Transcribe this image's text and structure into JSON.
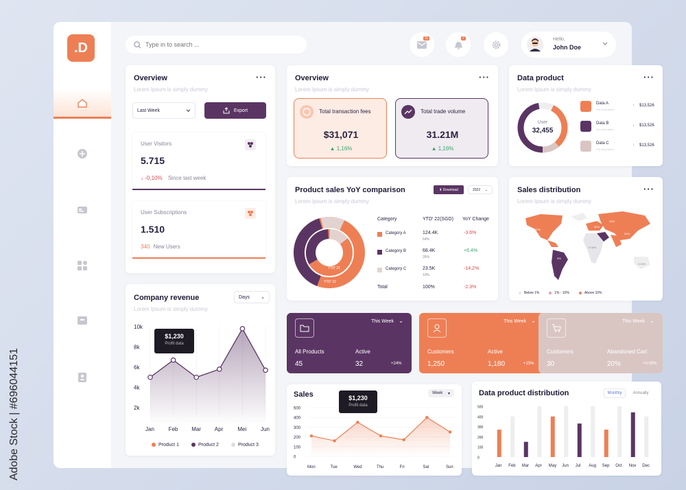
{
  "logo": ".D",
  "search": {
    "placeholder": "Type in to search ..."
  },
  "header": {
    "mail_badge": "11",
    "bell_badge": "7",
    "greeting": "Hello,",
    "user_name": "John Doe"
  },
  "overview_left": {
    "title": "Overview",
    "subtitle": "Lorem Ipsum is simply dummy",
    "period": "Last Week",
    "export_label": "Export",
    "visitors": {
      "label": "User Visitors",
      "value": "5.715",
      "delta": "-0,10%",
      "delta_note": "Since last week"
    },
    "subscriptions": {
      "label": "User Subscriptions",
      "value": "1.510",
      "count": "340",
      "count_note": "New Users"
    }
  },
  "overview_mid": {
    "title": "Overview",
    "subtitle": "Lorem Ipsum is simply dummy",
    "fees": {
      "label": "Total transaction fees",
      "value": "$31,071",
      "delta": "1,16%"
    },
    "volume": {
      "label": "Total trade volume",
      "value": "31.21M",
      "delta": "1,16%"
    }
  },
  "data_product": {
    "title": "Data product",
    "subtitle": "Lorem Ipsum is simply dummy",
    "center_label": "User",
    "center_value": "32,455",
    "items": [
      {
        "name": "Data A",
        "desc": "Put description",
        "value": "$13,526",
        "dir": "up"
      },
      {
        "name": "Data B",
        "desc": "Put description",
        "value": "$13,526",
        "dir": "down"
      },
      {
        "name": "Data C",
        "desc": "Put description",
        "value": "$13,526",
        "dir": "up"
      }
    ]
  },
  "sales_yoy": {
    "title": "Product sales YoY comparison",
    "subtitle": "Lorem Ipsum is simply dummy",
    "download_label": "Download",
    "year": "2022",
    "headers": [
      "Category",
      "YTD' 22(SGD)",
      "YoY Change"
    ],
    "rows": [
      {
        "name": "Category A",
        "value": "124.4K",
        "share": "64%",
        "change": "-3.6%",
        "color": "#ee7f55"
      },
      {
        "name": "Category B",
        "value": "68.4K",
        "share": "26%",
        "change": "+6.4%",
        "color": "#5a3563"
      },
      {
        "name": "Category C",
        "value": "23.5K",
        "share": "10%",
        "change": "-14.2%",
        "color": "#e3d3d0"
      }
    ],
    "total": {
      "name": "Total",
      "share": "100%",
      "change": "-2.3%"
    },
    "inner_label": "YTD' 21",
    "outer_label": "YTD' 22"
  },
  "sales_distribution": {
    "title": "Sales distribution",
    "subtitle": "Lorem Ipsum is simply dummy",
    "map_labels": [
      "20%",
      "29%",
      "32%",
      "31%",
      "9%",
      "0.06%",
      "0.05%"
    ],
    "legend": [
      "Below 1%",
      "1% - 10%",
      "Above 10%"
    ]
  },
  "company_revenue": {
    "title": "Company revenue",
    "subtitle": "Lorem Ipsum is simply dummy",
    "period": "Days",
    "tooltip_value": "$1,230",
    "tooltip_label": "Profit data",
    "legend": [
      "Product 1",
      "Product 2",
      "Product 3"
    ]
  },
  "stat_cards": [
    {
      "period": "This Week",
      "l1": "All Products",
      "v1": "45",
      "l2": "Active",
      "v2": "32",
      "pct": "+24%",
      "bg": "#5a3563"
    },
    {
      "period": "This Week",
      "l1": "Customers",
      "v1": "1,250",
      "l2": "Active",
      "v2": "1,180",
      "pct": "+15%",
      "bg": "#ee7f55"
    },
    {
      "period": "This Week",
      "l1": "Customers",
      "v1": "30",
      "l2": "Abandoned Cart",
      "v2": "20%",
      "pct": "+0.00%",
      "bg": "#d9c6c3"
    }
  ],
  "sales": {
    "title": "Sales",
    "period": "Week",
    "tooltip_value": "$1,230",
    "tooltip_label": "Profit data"
  },
  "distribution": {
    "title": "Data product distribution",
    "tab_monthly": "Monthly",
    "tab_annually": "Annually"
  },
  "watermark": "Adobe Stock | #696044151",
  "chart_data": [
    {
      "type": "line",
      "name": "company-revenue",
      "categories": [
        "Jan",
        "Feb",
        "Mar",
        "Apr",
        "Mei",
        "Jun"
      ],
      "values": [
        5000,
        6700,
        5000,
        5800,
        9800,
        5700
      ],
      "yticks": [
        "10k",
        "8k",
        "6k",
        "4k",
        "2k"
      ],
      "ylim": [
        0,
        10000
      ]
    },
    {
      "type": "line",
      "name": "sales",
      "categories": [
        "Mon",
        "Tue",
        "Wed",
        "Thu",
        "Fri",
        "Sat",
        "Sun"
      ],
      "values": [
        210,
        160,
        350,
        210,
        170,
        400,
        250
      ],
      "yticks": [
        500,
        400,
        300,
        200,
        100,
        0
      ],
      "ylim": [
        0,
        500
      ]
    },
    {
      "type": "bar",
      "name": "data-product-distribution",
      "categories": [
        "Jan",
        "Feb",
        "Mar",
        "Apr",
        "May",
        "Jun",
        "Jul",
        "Aug",
        "Sep",
        "Oct",
        "Nov",
        "Dec"
      ],
      "values": [
        270,
        0,
        150,
        0,
        400,
        0,
        330,
        0,
        270,
        0,
        440,
        0
      ],
      "background": [
        0,
        400,
        0,
        500,
        0,
        500,
        0,
        500,
        0,
        500,
        0,
        400
      ],
      "colors": [
        "#ee7f55",
        "#eee",
        "#5a3563",
        "#eee",
        "#ee7f55",
        "#eee",
        "#5a3563",
        "#eee",
        "#ee7f55",
        "#eee",
        "#5a3563",
        "#eee"
      ],
      "yticks": [
        500,
        400,
        300,
        200,
        100,
        0
      ],
      "ylim": [
        0,
        500
      ]
    }
  ]
}
